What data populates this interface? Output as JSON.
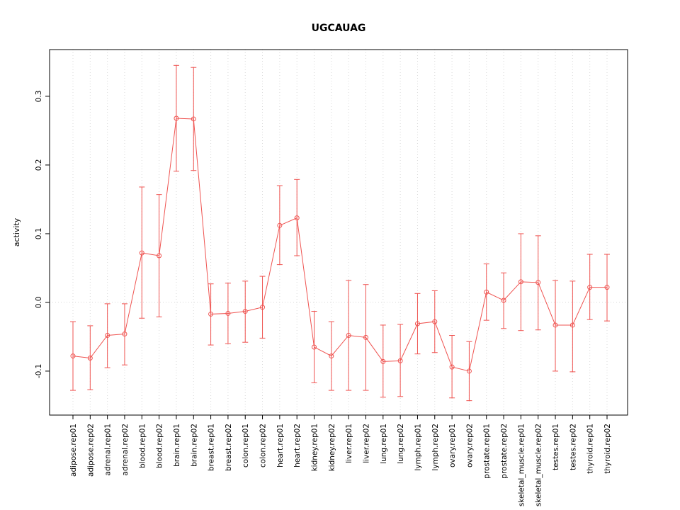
{
  "chart_data": {
    "type": "line",
    "error_bars": true,
    "title": "UGCAUAG",
    "xlabel": "",
    "ylabel": "activity",
    "ylim": [
      -0.164,
      0.368
    ],
    "yticks": [
      -0.1,
      0.0,
      0.1,
      0.2,
      0.3
    ],
    "grid": "dotted-vertical-per-category-and-zero-line",
    "legend": "none",
    "categories": [
      "adipose.rep01",
      "adipose.rep02",
      "adrenal.rep01",
      "adrenal.rep02",
      "blood.rep01",
      "blood.rep02",
      "brain.rep01",
      "brain.rep02",
      "breast.rep01",
      "breast.rep02",
      "colon.rep01",
      "colon.rep02",
      "heart.rep01",
      "heart.rep02",
      "kidney.rep01",
      "kidney.rep02",
      "liver.rep01",
      "liver.rep02",
      "lung.rep01",
      "lung.rep02",
      "lymph.rep01",
      "lymph.rep02",
      "ovary.rep01",
      "ovary.rep02",
      "prostate.rep01",
      "prostate.rep02",
      "skeletal_muscle.rep01",
      "skeletal_muscle.rep02",
      "testes.rep01",
      "testes.rep02",
      "thyroid.rep01",
      "thyroid.rep02"
    ],
    "series": [
      {
        "name": "activity",
        "values": [
          -0.078,
          -0.081,
          -0.048,
          -0.046,
          0.072,
          0.068,
          0.268,
          0.267,
          -0.017,
          -0.016,
          -0.013,
          -0.007,
          0.112,
          0.123,
          -0.065,
          -0.078,
          -0.048,
          -0.051,
          -0.086,
          -0.085,
          -0.031,
          -0.028,
          -0.094,
          -0.1,
          0.015,
          0.003,
          0.03,
          0.029,
          -0.033,
          -0.033,
          0.022,
          0.022
        ],
        "lower": [
          -0.128,
          -0.127,
          -0.095,
          -0.091,
          -0.023,
          -0.021,
          0.191,
          0.192,
          -0.062,
          -0.06,
          -0.058,
          -0.052,
          0.055,
          0.068,
          -0.117,
          -0.128,
          -0.128,
          -0.128,
          -0.138,
          -0.137,
          -0.075,
          -0.073,
          -0.139,
          -0.143,
          -0.026,
          -0.038,
          -0.041,
          -0.04,
          -0.1,
          -0.101,
          -0.025,
          -0.027
        ],
        "upper": [
          -0.028,
          -0.034,
          -0.002,
          -0.002,
          0.168,
          0.157,
          0.345,
          0.342,
          0.027,
          0.028,
          0.031,
          0.038,
          0.17,
          0.179,
          -0.013,
          -0.028,
          0.032,
          0.026,
          -0.033,
          -0.032,
          0.013,
          0.017,
          -0.048,
          -0.057,
          0.056,
          0.043,
          0.1,
          0.097,
          0.032,
          0.031,
          0.07,
          0.07
        ]
      }
    ],
    "colors": {
      "series": "#ef5350",
      "grid": "#d8d8d8",
      "axis": "#000000",
      "background": "#ffffff"
    }
  }
}
